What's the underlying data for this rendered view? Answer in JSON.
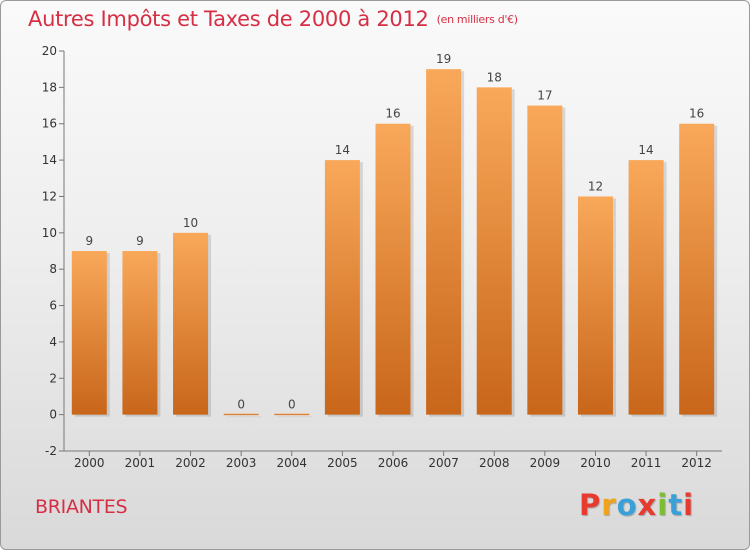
{
  "header": {
    "title": "Autres Impôts et Taxes de 2000 à 2012",
    "subtitle": "(en milliers d'€)"
  },
  "footer": {
    "commune": "BRIANTES",
    "logo_text": "Proxiti"
  },
  "colors": {
    "title": "#d62f45",
    "bar_light": "#f9a85a",
    "bar_dark": "#c8661a",
    "logo": [
      "#e63b2e",
      "#f0a21b",
      "#3aa1d8",
      "#e63b2e",
      "#7bbf2f",
      "#3aa1d8",
      "#e63b2e"
    ]
  },
  "chart_data": {
    "type": "bar",
    "categories": [
      "2000",
      "2001",
      "2002",
      "2003",
      "2004",
      "2005",
      "2006",
      "2007",
      "2008",
      "2009",
      "2010",
      "2011",
      "2012"
    ],
    "values": [
      9,
      9,
      10,
      0,
      0,
      14,
      16,
      19,
      18,
      17,
      12,
      14,
      16
    ],
    "data_labels": [
      "9",
      "9",
      "10",
      "0",
      "0",
      "14",
      "16",
      "19",
      "18",
      "17",
      "12",
      "14",
      "16"
    ],
    "ylim": [
      -2,
      20
    ],
    "yticks": [
      -2,
      0,
      2,
      4,
      6,
      8,
      10,
      12,
      14,
      16,
      18,
      20
    ],
    "grid": false,
    "xlabel": "",
    "ylabel": ""
  }
}
